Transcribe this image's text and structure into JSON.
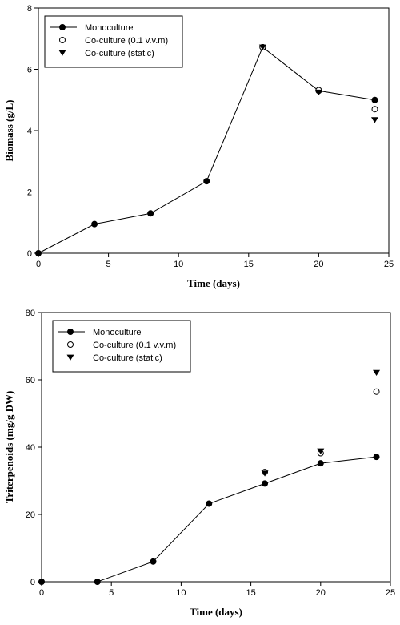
{
  "chart_data": [
    {
      "type": "line",
      "xlabel": "Time (days)",
      "ylabel": "Biomass (g/L)",
      "xlim": [
        0,
        25
      ],
      "ylim": [
        0,
        8
      ],
      "xticks": [
        0,
        5,
        10,
        15,
        20,
        25
      ],
      "yticks": [
        0,
        2,
        4,
        6,
        8
      ],
      "legend": "top-left",
      "grid": false,
      "series": [
        {
          "name": "Monoculture",
          "marker": "filled-circle",
          "line": true,
          "x": [
            0,
            4,
            8,
            12,
            16,
            20,
            24
          ],
          "y": [
            0,
            0.95,
            1.3,
            2.35,
            6.72,
            5.3,
            5.0
          ]
        },
        {
          "name": "Co-culture (0.1 v.v.m)",
          "marker": "open-circle",
          "line": false,
          "x": [
            16,
            20,
            24
          ],
          "y": [
            6.72,
            5.32,
            4.7
          ]
        },
        {
          "name": "Co-culture (static)",
          "marker": "filled-triangle-down",
          "line": false,
          "x": [
            16,
            20,
            24
          ],
          "y": [
            6.72,
            5.25,
            4.35
          ]
        }
      ]
    },
    {
      "type": "line",
      "xlabel": "Time (days)",
      "ylabel": "Triterpenoids (mg/g DW)",
      "xlim": [
        0,
        25
      ],
      "ylim": [
        0,
        80
      ],
      "xticks": [
        0,
        5,
        10,
        15,
        20,
        25
      ],
      "yticks": [
        0,
        20,
        40,
        60,
        80
      ],
      "legend": "top-left",
      "grid": false,
      "series": [
        {
          "name": "Monoculture",
          "marker": "filled-circle",
          "line": true,
          "x": [
            0,
            4,
            8,
            12,
            16,
            20,
            24
          ],
          "y": [
            0,
            0,
            6,
            23.2,
            29.2,
            35.2,
            37.1
          ]
        },
        {
          "name": "Co-culture (0.1 v.v.m)",
          "marker": "open-circle",
          "line": false,
          "x": [
            16,
            20,
            24
          ],
          "y": [
            32.6,
            38.2,
            56.5
          ]
        },
        {
          "name": "Co-culture (static)",
          "marker": "filled-triangle-down",
          "line": false,
          "x": [
            16,
            20,
            24
          ],
          "y": [
            32.2,
            38.8,
            62.1
          ]
        }
      ]
    }
  ]
}
